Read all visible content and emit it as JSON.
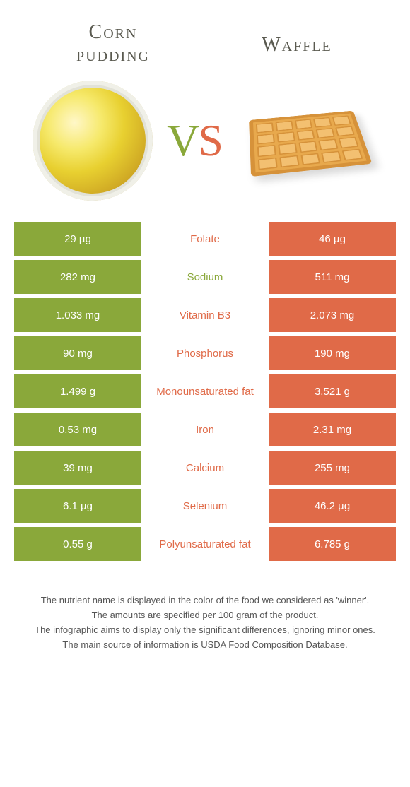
{
  "colors": {
    "green": "#8aa83a",
    "orange": "#e06a48",
    "title": "#5a5a50",
    "footnote": "#555555",
    "background": "#ffffff"
  },
  "food_left": {
    "name_line1": "Corn",
    "name_line2": "pudding"
  },
  "food_right": {
    "name": "Waffle"
  },
  "vs_label": {
    "v": "V",
    "s": "S"
  },
  "rows": [
    {
      "left": "29 µg",
      "label": "Folate",
      "right": "46 µg",
      "winner": "orange"
    },
    {
      "left": "282 mg",
      "label": "Sodium",
      "right": "511 mg",
      "winner": "green"
    },
    {
      "left": "1.033 mg",
      "label": "Vitamin B3",
      "right": "2.073 mg",
      "winner": "orange"
    },
    {
      "left": "90 mg",
      "label": "Phosphorus",
      "right": "190 mg",
      "winner": "orange"
    },
    {
      "left": "1.499 g",
      "label": "Monounsaturated fat",
      "right": "3.521 g",
      "winner": "orange"
    },
    {
      "left": "0.53 mg",
      "label": "Iron",
      "right": "2.31 mg",
      "winner": "orange"
    },
    {
      "left": "39 mg",
      "label": "Calcium",
      "right": "255 mg",
      "winner": "orange"
    },
    {
      "left": "6.1 µg",
      "label": "Selenium",
      "right": "46.2 µg",
      "winner": "orange"
    },
    {
      "left": "0.55 g",
      "label": "Polyunsaturated fat",
      "right": "6.785 g",
      "winner": "orange"
    }
  ],
  "footnotes": [
    "The nutrient name is displayed in the color of the food we considered as 'winner'.",
    "The amounts are specified per 100 gram of the product.",
    "The infographic aims to display only the significant differences, ignoring minor ones.",
    "The main source of information is USDA Food Composition Database."
  ]
}
